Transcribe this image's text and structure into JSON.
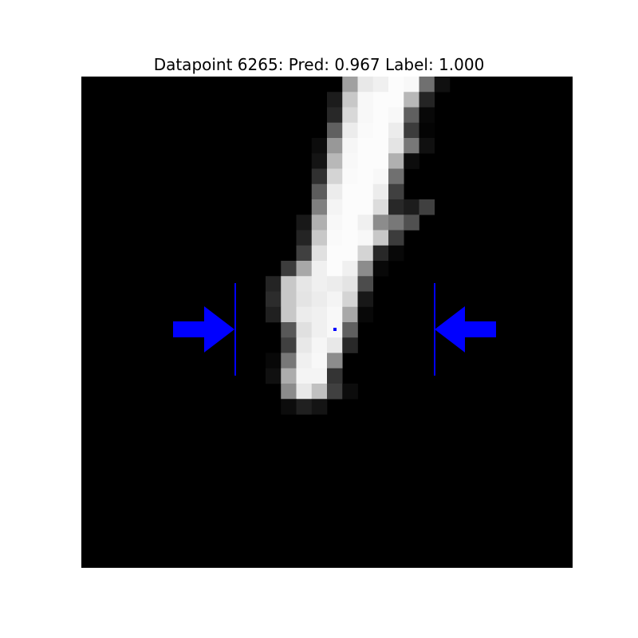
{
  "figure": {
    "title": "Datapoint 6265: Pred: 0.967 Label: 1.000",
    "background_color": "#000000",
    "annotation_color": "#0000ff",
    "pixel_grid": {
      "rows": 32,
      "cols": 32,
      "gray_values": [
        [
          0,
          0,
          0,
          0,
          0,
          0,
          0,
          0,
          0,
          0,
          0,
          0,
          0,
          0,
          0,
          0,
          0,
          160,
          232,
          240,
          252,
          248,
          112,
          16,
          0,
          0,
          0,
          0,
          0,
          0,
          0,
          0
        ],
        [
          0,
          0,
          0,
          0,
          0,
          0,
          0,
          0,
          0,
          0,
          0,
          0,
          0,
          0,
          0,
          0,
          28,
          200,
          248,
          252,
          252,
          184,
          36,
          0,
          0,
          0,
          0,
          0,
          0,
          0,
          0,
          0
        ],
        [
          0,
          0,
          0,
          0,
          0,
          0,
          0,
          0,
          0,
          0,
          0,
          0,
          0,
          0,
          0,
          0,
          40,
          216,
          248,
          252,
          248,
          96,
          8,
          0,
          0,
          0,
          0,
          0,
          0,
          0,
          0,
          0
        ],
        [
          0,
          0,
          0,
          0,
          0,
          0,
          0,
          0,
          0,
          0,
          0,
          0,
          0,
          0,
          0,
          0,
          96,
          236,
          250,
          252,
          236,
          60,
          4,
          0,
          0,
          0,
          0,
          0,
          0,
          0,
          0,
          0
        ],
        [
          0,
          0,
          0,
          0,
          0,
          0,
          0,
          0,
          0,
          0,
          0,
          0,
          0,
          0,
          0,
          12,
          152,
          246,
          252,
          252,
          228,
          120,
          16,
          0,
          0,
          0,
          0,
          0,
          0,
          0,
          0,
          0
        ],
        [
          0,
          0,
          0,
          0,
          0,
          0,
          0,
          0,
          0,
          0,
          0,
          0,
          0,
          0,
          0,
          20,
          184,
          248,
          252,
          252,
          176,
          12,
          0,
          0,
          0,
          0,
          0,
          0,
          0,
          0,
          0,
          0
        ],
        [
          0,
          0,
          0,
          0,
          0,
          0,
          0,
          0,
          0,
          0,
          0,
          0,
          0,
          0,
          0,
          48,
          212,
          250,
          252,
          248,
          112,
          0,
          0,
          0,
          0,
          0,
          0,
          0,
          0,
          0,
          0,
          0
        ],
        [
          0,
          0,
          0,
          0,
          0,
          0,
          0,
          0,
          0,
          0,
          0,
          0,
          0,
          0,
          0,
          92,
          236,
          252,
          252,
          236,
          64,
          0,
          0,
          0,
          0,
          0,
          0,
          0,
          0,
          0,
          0,
          0
        ],
        [
          0,
          0,
          0,
          0,
          0,
          0,
          0,
          0,
          0,
          0,
          0,
          0,
          0,
          0,
          0,
          128,
          244,
          252,
          252,
          220,
          40,
          28,
          64,
          0,
          0,
          0,
          0,
          0,
          0,
          0,
          0,
          0
        ],
        [
          0,
          0,
          0,
          0,
          0,
          0,
          0,
          0,
          0,
          0,
          0,
          0,
          0,
          0,
          24,
          176,
          248,
          252,
          240,
          140,
          120,
          80,
          0,
          0,
          0,
          0,
          0,
          0,
          0,
          0,
          0,
          0
        ],
        [
          0,
          0,
          0,
          0,
          0,
          0,
          0,
          0,
          0,
          0,
          0,
          0,
          0,
          0,
          36,
          200,
          250,
          252,
          248,
          200,
          60,
          0,
          0,
          0,
          0,
          0,
          0,
          0,
          0,
          0,
          0,
          0
        ],
        [
          0,
          0,
          0,
          0,
          0,
          0,
          0,
          0,
          0,
          0,
          0,
          0,
          0,
          0,
          64,
          224,
          252,
          252,
          212,
          40,
          8,
          0,
          0,
          0,
          0,
          0,
          0,
          0,
          0,
          0,
          0,
          0
        ],
        [
          0,
          0,
          0,
          0,
          0,
          0,
          0,
          0,
          0,
          0,
          0,
          0,
          0,
          60,
          168,
          240,
          252,
          240,
          140,
          8,
          0,
          0,
          0,
          0,
          0,
          0,
          0,
          0,
          0,
          0,
          0,
          0
        ],
        [
          0,
          0,
          0,
          0,
          0,
          0,
          0,
          0,
          0,
          0,
          0,
          0,
          36,
          200,
          230,
          240,
          236,
          228,
          76,
          0,
          0,
          0,
          0,
          0,
          0,
          0,
          0,
          0,
          0,
          0,
          0,
          0
        ],
        [
          0,
          0,
          0,
          0,
          0,
          0,
          0,
          0,
          0,
          0,
          0,
          0,
          44,
          200,
          228,
          236,
          244,
          212,
          24,
          0,
          0,
          0,
          0,
          0,
          0,
          0,
          0,
          0,
          0,
          0,
          0,
          0
        ],
        [
          0,
          0,
          0,
          0,
          0,
          0,
          0,
          0,
          0,
          0,
          0,
          0,
          32,
          200,
          236,
          240,
          248,
          168,
          8,
          0,
          0,
          0,
          0,
          0,
          0,
          0,
          0,
          0,
          0,
          0,
          0,
          0
        ],
        [
          0,
          0,
          0,
          0,
          0,
          0,
          0,
          0,
          0,
          0,
          0,
          0,
          0,
          88,
          224,
          240,
          248,
          96,
          0,
          0,
          0,
          0,
          0,
          0,
          0,
          0,
          0,
          0,
          0,
          0,
          0,
          0
        ],
        [
          0,
          0,
          0,
          0,
          0,
          0,
          0,
          0,
          0,
          0,
          0,
          0,
          0,
          64,
          232,
          246,
          232,
          40,
          0,
          0,
          0,
          0,
          0,
          0,
          0,
          0,
          0,
          0,
          0,
          0,
          0,
          0
        ],
        [
          0,
          0,
          0,
          0,
          0,
          0,
          0,
          0,
          0,
          0,
          0,
          0,
          8,
          120,
          240,
          248,
          140,
          0,
          0,
          0,
          0,
          0,
          0,
          0,
          0,
          0,
          0,
          0,
          0,
          0,
          0,
          0
        ],
        [
          0,
          0,
          0,
          0,
          0,
          0,
          0,
          0,
          0,
          0,
          0,
          0,
          16,
          172,
          244,
          244,
          52,
          0,
          0,
          0,
          0,
          0,
          0,
          0,
          0,
          0,
          0,
          0,
          0,
          0,
          0,
          0
        ],
        [
          0,
          0,
          0,
          0,
          0,
          0,
          0,
          0,
          0,
          0,
          0,
          0,
          0,
          140,
          232,
          192,
          64,
          12,
          0,
          0,
          0,
          0,
          0,
          0,
          0,
          0,
          0,
          0,
          0,
          0,
          0,
          0
        ],
        [
          0,
          0,
          0,
          0,
          0,
          0,
          0,
          0,
          0,
          0,
          0,
          0,
          0,
          12,
          32,
          20,
          0,
          0,
          0,
          0,
          0,
          0,
          0,
          0,
          0,
          0,
          0,
          0,
          0,
          0,
          0,
          0
        ],
        [
          0,
          0,
          0,
          0,
          0,
          0,
          0,
          0,
          0,
          0,
          0,
          0,
          0,
          0,
          0,
          0,
          0,
          0,
          0,
          0,
          0,
          0,
          0,
          0,
          0,
          0,
          0,
          0,
          0,
          0,
          0,
          0
        ],
        [
          0,
          0,
          0,
          0,
          0,
          0,
          0,
          0,
          0,
          0,
          0,
          0,
          0,
          0,
          0,
          0,
          0,
          0,
          0,
          0,
          0,
          0,
          0,
          0,
          0,
          0,
          0,
          0,
          0,
          0,
          0,
          0
        ],
        [
          0,
          0,
          0,
          0,
          0,
          0,
          0,
          0,
          0,
          0,
          0,
          0,
          0,
          0,
          0,
          0,
          0,
          0,
          0,
          0,
          0,
          0,
          0,
          0,
          0,
          0,
          0,
          0,
          0,
          0,
          0,
          0
        ],
        [
          0,
          0,
          0,
          0,
          0,
          0,
          0,
          0,
          0,
          0,
          0,
          0,
          0,
          0,
          0,
          0,
          0,
          0,
          0,
          0,
          0,
          0,
          0,
          0,
          0,
          0,
          0,
          0,
          0,
          0,
          0,
          0
        ],
        [
          0,
          0,
          0,
          0,
          0,
          0,
          0,
          0,
          0,
          0,
          0,
          0,
          0,
          0,
          0,
          0,
          0,
          0,
          0,
          0,
          0,
          0,
          0,
          0,
          0,
          0,
          0,
          0,
          0,
          0,
          0,
          0
        ],
        [
          0,
          0,
          0,
          0,
          0,
          0,
          0,
          0,
          0,
          0,
          0,
          0,
          0,
          0,
          0,
          0,
          0,
          0,
          0,
          0,
          0,
          0,
          0,
          0,
          0,
          0,
          0,
          0,
          0,
          0,
          0,
          0
        ],
        [
          0,
          0,
          0,
          0,
          0,
          0,
          0,
          0,
          0,
          0,
          0,
          0,
          0,
          0,
          0,
          0,
          0,
          0,
          0,
          0,
          0,
          0,
          0,
          0,
          0,
          0,
          0,
          0,
          0,
          0,
          0,
          0
        ],
        [
          0,
          0,
          0,
          0,
          0,
          0,
          0,
          0,
          0,
          0,
          0,
          0,
          0,
          0,
          0,
          0,
          0,
          0,
          0,
          0,
          0,
          0,
          0,
          0,
          0,
          0,
          0,
          0,
          0,
          0,
          0,
          0
        ],
        [
          0,
          0,
          0,
          0,
          0,
          0,
          0,
          0,
          0,
          0,
          0,
          0,
          0,
          0,
          0,
          0,
          0,
          0,
          0,
          0,
          0,
          0,
          0,
          0,
          0,
          0,
          0,
          0,
          0,
          0,
          0,
          0
        ],
        [
          0,
          0,
          0,
          0,
          0,
          0,
          0,
          0,
          0,
          0,
          0,
          0,
          0,
          0,
          0,
          0,
          0,
          0,
          0,
          0,
          0,
          0,
          0,
          0,
          0,
          0,
          0,
          0,
          0,
          0,
          0,
          0
        ]
      ]
    },
    "annotations": {
      "left_arrow_icon": "arrow-right-icon",
      "right_arrow_icon": "arrow-left-icon",
      "center_marker_icon": "dot-marker-icon"
    }
  }
}
